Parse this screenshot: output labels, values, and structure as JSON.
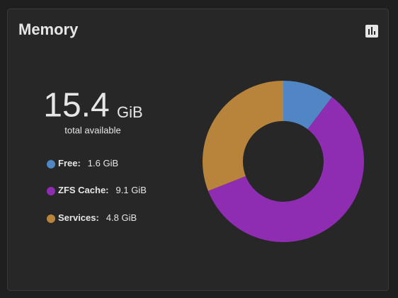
{
  "widget": {
    "title": "Memory",
    "total": 15.4,
    "total_unit": "GiB",
    "total_caption": "total available"
  },
  "chart_data": {
    "type": "donut",
    "categories": [
      "Free:",
      "ZFS Cache:",
      "Services:"
    ],
    "values": [
      1.6,
      9.1,
      4.8
    ],
    "value_labels": [
      "1.6 GiB",
      "9.1 GiB",
      "4.8 GiB"
    ],
    "colors": [
      "#5086c4",
      "#8e2db1",
      "#b8843c"
    ]
  }
}
